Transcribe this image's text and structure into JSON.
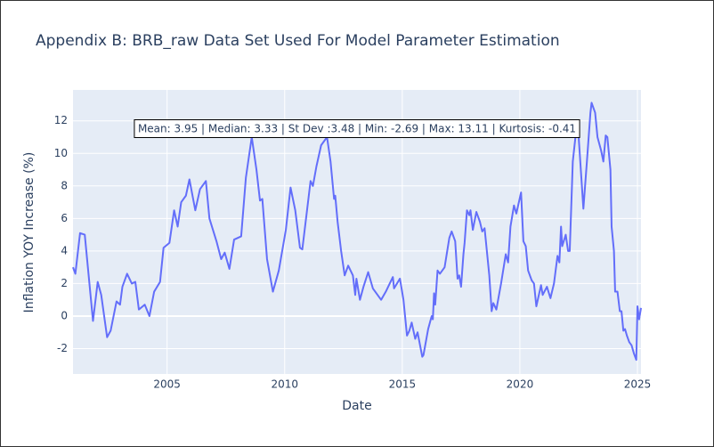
{
  "chart_data": {
    "type": "line",
    "title": "Appendix B: BRB_raw Data Set Used For Model Parameter Estimation",
    "x_label": "Date",
    "y_label": "Inflation YOY Increase (%)",
    "annotation": "Mean: 3.95 | Median: 3.33 | St Dev :3.48 | Min: -2.69 | Max: 13.11 | Kurtosis: -0.41",
    "xlim": [
      2001.0,
      2025.15
    ],
    "ylim": [
      -3.56,
      13.9
    ],
    "xticks": [
      2005,
      2010,
      2015,
      2020,
      2025
    ],
    "yticks": [
      -2,
      0,
      2,
      4,
      6,
      8,
      10,
      12
    ],
    "grid": true,
    "background": "#e5ecf6",
    "series": [
      {
        "name": "Inflation",
        "color": "#636efa",
        "x": [
          2001.0,
          2001.1,
          2001.3,
          2001.5,
          2001.85,
          2002.05,
          2002.2,
          2002.45,
          2002.6,
          2002.85,
          2003.0,
          2003.1,
          2003.3,
          2003.5,
          2003.65,
          2003.8,
          2004.05,
          2004.25,
          2004.45,
          2004.7,
          2004.85,
          2005.1,
          2005.3,
          2005.45,
          2005.6,
          2005.8,
          2005.95,
          2006.2,
          2006.4,
          2006.65,
          2006.8,
          2007.1,
          2007.3,
          2007.45,
          2007.65,
          2007.85,
          2008.15,
          2008.35,
          2008.6,
          2008.8,
          2008.95,
          2009.05,
          2009.25,
          2009.5,
          2009.75,
          2010.05,
          2010.25,
          2010.45,
          2010.65,
          2010.75,
          2010.95,
          2011.1,
          2011.2,
          2011.35,
          2011.55,
          2011.8,
          2011.95,
          2012.1,
          2012.15,
          2012.25,
          2012.4,
          2012.55,
          2012.7,
          2012.9,
          2013.0,
          2013.05,
          2013.2,
          2013.35,
          2013.55,
          2013.75,
          2014.1,
          2014.3,
          2014.6,
          2014.65,
          2014.9,
          2015.05,
          2015.2,
          2015.3,
          2015.4,
          2015.55,
          2015.65,
          2015.85,
          2015.9,
          2016.1,
          2016.25,
          2016.3,
          2016.35,
          2016.4,
          2016.5,
          2016.6,
          2016.8,
          2016.9,
          2017.0,
          2017.1,
          2017.25,
          2017.35,
          2017.42,
          2017.5,
          2017.6,
          2017.65,
          2017.75,
          2017.85,
          2017.9,
          2018.0,
          2018.15,
          2018.3,
          2018.4,
          2018.5,
          2018.7,
          2018.8,
          2018.87,
          2019.0,
          2019.2,
          2019.4,
          2019.5,
          2019.6,
          2019.75,
          2019.85,
          2020.05,
          2020.15,
          2020.25,
          2020.35,
          2020.5,
          2020.6,
          2020.7,
          2020.9,
          2020.97,
          2021.15,
          2021.3,
          2021.45,
          2021.6,
          2021.68,
          2021.75,
          2021.8,
          2021.95,
          2022.05,
          2022.12,
          2022.25,
          2022.4,
          2022.5,
          2022.7,
          2022.85,
          2023.0,
          2023.05,
          2023.2,
          2023.3,
          2023.45,
          2023.55,
          2023.65,
          2023.72,
          2023.85,
          2023.9,
          2024.0,
          2024.05,
          2024.15,
          2024.25,
          2024.32,
          2024.4,
          2024.47,
          2024.55,
          2024.65,
          2024.75,
          2024.85,
          2024.95,
          2025.0,
          2025.07,
          2025.15
        ],
        "values": [
          3.0,
          2.6,
          5.1,
          5.0,
          -0.3,
          2.1,
          1.3,
          -1.3,
          -0.9,
          0.9,
          0.7,
          1.8,
          2.6,
          2.0,
          2.1,
          0.4,
          0.7,
          0.0,
          1.5,
          2.1,
          4.2,
          4.5,
          6.5,
          5.5,
          7.0,
          7.4,
          8.4,
          6.5,
          7.8,
          8.3,
          6.0,
          4.6,
          3.5,
          3.9,
          2.9,
          4.7,
          4.9,
          8.5,
          11.0,
          9.0,
          7.1,
          7.2,
          3.5,
          1.5,
          2.8,
          5.3,
          7.9,
          6.5,
          4.2,
          4.1,
          6.5,
          8.3,
          8.0,
          9.2,
          10.5,
          11.0,
          9.5,
          7.2,
          7.4,
          5.8,
          4.0,
          2.5,
          3.1,
          2.5,
          1.3,
          2.3,
          1.0,
          1.8,
          2.7,
          1.7,
          1.0,
          1.5,
          2.4,
          1.7,
          2.3,
          1.0,
          -1.2,
          -0.9,
          -0.4,
          -1.4,
          -1.0,
          -2.5,
          -2.4,
          -0.8,
          0.0,
          -0.2,
          1.4,
          0.7,
          2.8,
          2.6,
          3.0,
          3.9,
          4.8,
          5.2,
          4.6,
          2.3,
          2.5,
          1.8,
          3.8,
          4.5,
          6.5,
          6.2,
          6.5,
          5.3,
          6.4,
          5.8,
          5.2,
          5.4,
          2.5,
          0.3,
          0.8,
          0.4,
          2.0,
          3.8,
          3.3,
          5.5,
          6.8,
          6.3,
          7.6,
          4.6,
          4.3,
          2.8,
          2.2,
          2.0,
          0.6,
          1.9,
          1.3,
          1.8,
          1.1,
          2.0,
          3.7,
          3.3,
          5.5,
          4.3,
          5.0,
          4.0,
          4.0,
          9.5,
          11.5,
          11.0,
          6.6,
          9.5,
          12.5,
          13.11,
          12.5,
          11.0,
          10.2,
          9.5,
          11.1,
          11.0,
          9.0,
          5.5,
          4.0,
          1.5,
          1.5,
          0.3,
          0.3,
          -0.9,
          -0.8,
          -1.2,
          -1.6,
          -1.8,
          -2.3,
          -2.69,
          0.6,
          -0.2,
          0.5
        ]
      }
    ]
  }
}
